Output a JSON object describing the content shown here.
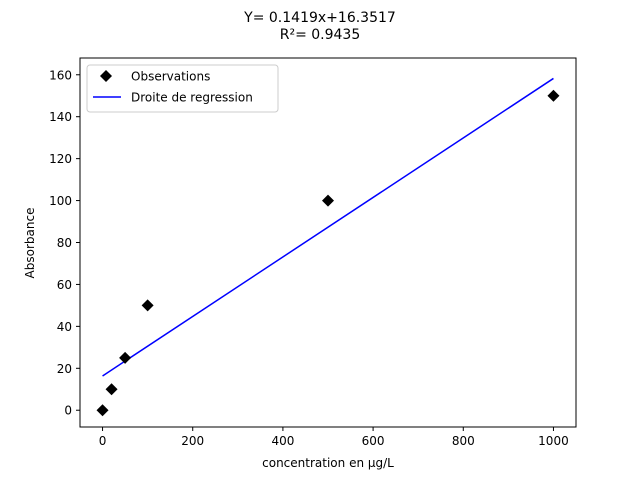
{
  "chart_data": {
    "type": "scatter",
    "title_line1": "Y= 0.1419x+16.3517",
    "title_line2": "R²= 0.9435",
    "xlabel": "concentration en µg/L",
    "ylabel": "Absorbance",
    "xlim": [
      -50,
      1050
    ],
    "ylim": [
      -8,
      168
    ],
    "x_ticks": [
      0,
      200,
      400,
      600,
      800,
      1000
    ],
    "y_ticks": [
      0,
      20,
      40,
      60,
      80,
      100,
      120,
      140,
      160
    ],
    "grid": false,
    "legend_position": "top-left",
    "series": [
      {
        "name": "Observations",
        "kind": "scatter",
        "marker": "diamond",
        "color": "#000000",
        "x": [
          0,
          20,
          50,
          100,
          500,
          1000
        ],
        "y": [
          0,
          10,
          25,
          50,
          100,
          150
        ]
      },
      {
        "name": "Droite de regression",
        "kind": "line",
        "color": "#0000ff",
        "slope": 0.1419,
        "intercept": 16.3517,
        "x": [
          0,
          1000
        ],
        "y": [
          16.3517,
          158.2517
        ]
      }
    ]
  }
}
